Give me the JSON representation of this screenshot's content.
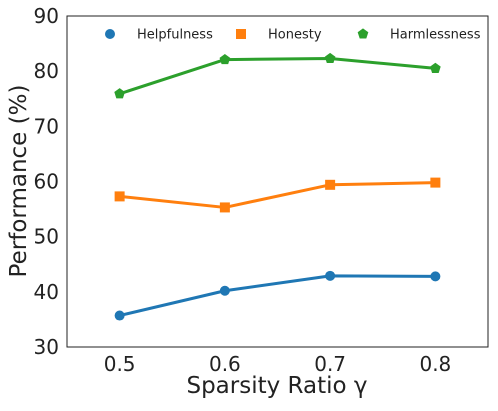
{
  "chart_data": {
    "type": "line",
    "xlabel": "Sparsity Ratio γ",
    "ylabel": "Performance (%)",
    "x": [
      0.5,
      0.6,
      0.7,
      0.8
    ],
    "x_tick_labels": [
      "0.5",
      "0.6",
      "0.7",
      "0.8"
    ],
    "y_tick_labels": [
      "30",
      "40",
      "50",
      "60",
      "70",
      "80",
      "90"
    ],
    "xlim": [
      0.45,
      0.85
    ],
    "ylim": [
      30,
      90
    ],
    "grid": false,
    "legend_position": "top",
    "series": [
      {
        "name": "Helpfulness",
        "values": [
          35.7,
          40.2,
          42.9,
          42.8
        ],
        "color": "#1f77b4",
        "marker": "circle"
      },
      {
        "name": "Honesty",
        "values": [
          57.3,
          55.3,
          59.4,
          59.8
        ],
        "color": "#ff7f0e",
        "marker": "square"
      },
      {
        "name": "Harmlessness",
        "values": [
          75.9,
          82.1,
          82.3,
          80.5
        ],
        "color": "#2ca02c",
        "marker": "pentagon"
      }
    ]
  }
}
